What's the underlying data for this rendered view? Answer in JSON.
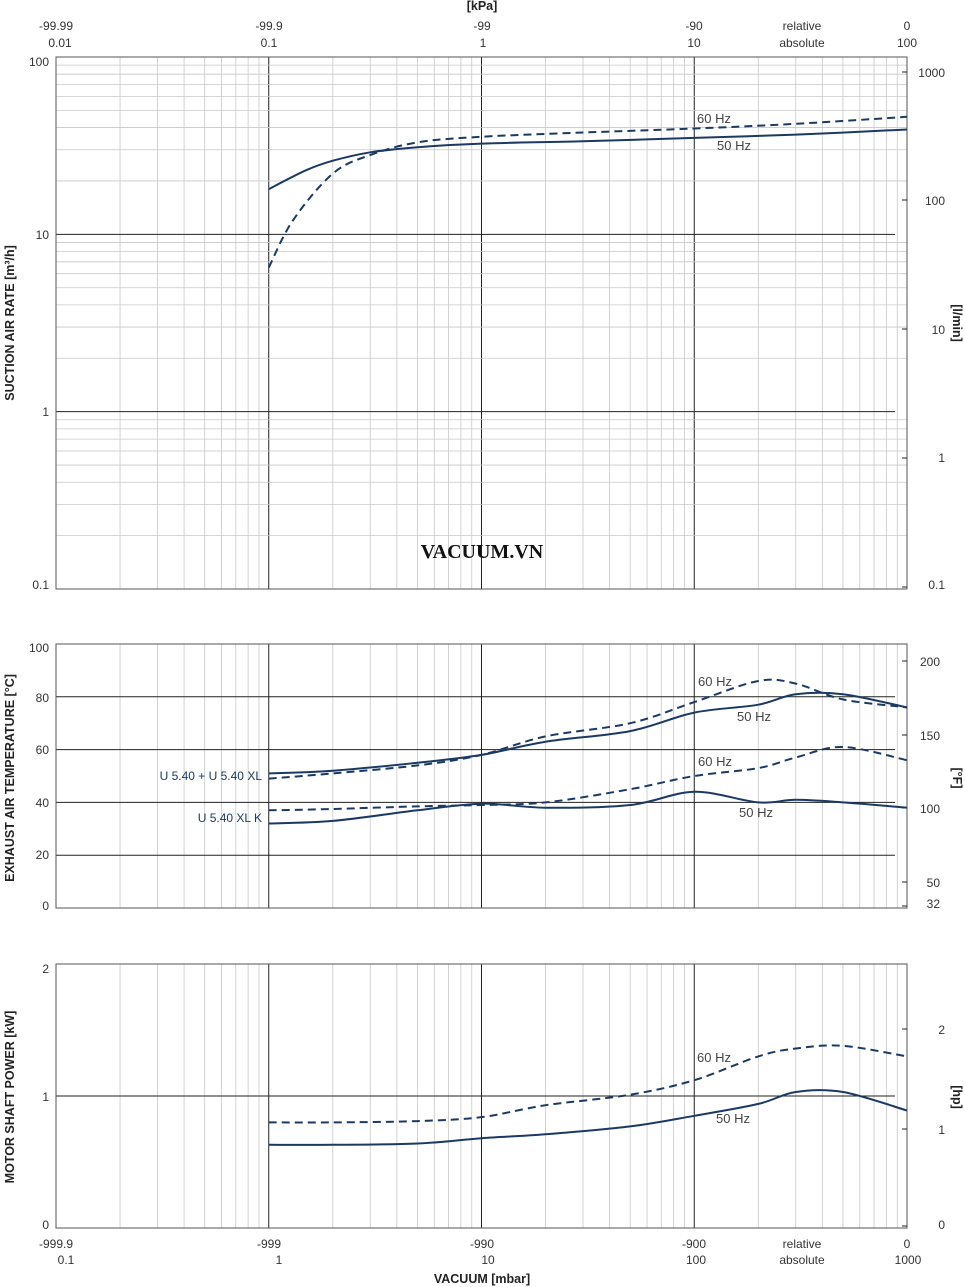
{
  "watermark": "VACUUM.VN",
  "top_axis": {
    "unit_label": "[kPa]",
    "relative_ticks": [
      "-99.99",
      "-99.9",
      "-99",
      "-90",
      "relative",
      "0"
    ],
    "absolute_ticks": [
      "0.01",
      "0.1",
      "1",
      "10",
      "absolute",
      "100"
    ]
  },
  "bottom_axis": {
    "unit_label": "VACUUM  [mbar]",
    "relative_ticks": [
      "-999.9",
      "-999",
      "-990",
      "-900",
      "relative",
      "0"
    ],
    "absolute_ticks": [
      "0.1",
      "1",
      "10",
      "100",
      "absolute",
      "1000"
    ]
  },
  "chart_data": [
    {
      "type": "line",
      "x_scale": "log",
      "xlim": [
        0.1,
        1000
      ],
      "y_scale": "log",
      "ylim": [
        0.1,
        100
      ],
      "ylabel": "SUCTION AIR RATE  [m³/h]",
      "y_ticks": [
        "100",
        "10",
        "1",
        "0.1"
      ],
      "y2label": "[l/min]",
      "y2_ticks": [
        "1000",
        "100",
        "10",
        "1",
        "0.1"
      ],
      "series": [
        {
          "name": "50 Hz",
          "x": [
            1,
            1.5,
            2,
            3,
            5,
            10,
            30,
            100,
            300,
            1000
          ],
          "y": [
            18,
            23,
            26,
            29,
            31,
            32.5,
            33.5,
            35,
            36.5,
            39
          ]
        },
        {
          "name": "60 Hz",
          "x": [
            1,
            1.3,
            2,
            3,
            5,
            10,
            30,
            100,
            300,
            1000
          ],
          "y": [
            6.5,
            12,
            22,
            28,
            33,
            35.5,
            37.5,
            39.5,
            42,
            46
          ]
        }
      ],
      "labels": [
        "60 Hz",
        "50 Hz"
      ]
    },
    {
      "type": "line",
      "x_scale": "log",
      "xlim": [
        0.1,
        1000
      ],
      "ylim": [
        0,
        100
      ],
      "ylabel": "EXHAUST AIR TEMPERATURE  [°C]",
      "y_ticks": [
        "100",
        "80",
        "60",
        "40",
        "20",
        "0"
      ],
      "y2label": "[°F]",
      "y2_ticks": [
        "200",
        "150",
        "100",
        "50",
        "32"
      ],
      "series": [
        {
          "name": "U 5.40 + U 5.40 XL",
          "variant": "50 Hz",
          "x": [
            1,
            2,
            5,
            10,
            20,
            50,
            100,
            200,
            300,
            500,
            1000
          ],
          "y": [
            51,
            52,
            55,
            58,
            63,
            67,
            74,
            77,
            81,
            81,
            76
          ]
        },
        {
          "name": "U 5.40 + U 5.40 XL",
          "variant": "60 Hz",
          "x": [
            1,
            2,
            5,
            10,
            20,
            50,
            100,
            200,
            300,
            500,
            1000
          ],
          "y": [
            49,
            51,
            54,
            58,
            65,
            70,
            78,
            86,
            85,
            79,
            76
          ]
        },
        {
          "name": "U 5.40 XL K",
          "variant": "50 Hz",
          "x": [
            1,
            2,
            5,
            10,
            20,
            50,
            100,
            200,
            300,
            500,
            1000
          ],
          "y": [
            32,
            33,
            37,
            39.5,
            38,
            39,
            44,
            40,
            41,
            40,
            38
          ]
        },
        {
          "name": "U 5.40 XL K",
          "variant": "60 Hz",
          "x": [
            1,
            2,
            5,
            10,
            20,
            50,
            100,
            200,
            300,
            500,
            1000
          ],
          "y": [
            37,
            37.5,
            38.5,
            39,
            40,
            45,
            50,
            53,
            57,
            61,
            56
          ]
        }
      ],
      "labels": [
        "60 Hz",
        "50 Hz",
        "60 Hz",
        "50 Hz"
      ],
      "series_labels": [
        "U 5.40 + U 5.40 XL",
        "U 5.40 XL K"
      ]
    },
    {
      "type": "line",
      "x_scale": "log",
      "xlim": [
        0.1,
        1000
      ],
      "ylim": [
        0,
        2
      ],
      "ylabel": "MOTOR SHAFT POWER  [kW]",
      "y_ticks": [
        "2",
        "1",
        "0"
      ],
      "y2label": "[hp]",
      "y2_ticks": [
        "2",
        "1",
        "0"
      ],
      "series": [
        {
          "name": "50 Hz",
          "x": [
            1,
            2,
            5,
            10,
            20,
            50,
            100,
            200,
            300,
            500,
            1000
          ],
          "y": [
            0.63,
            0.63,
            0.64,
            0.68,
            0.71,
            0.77,
            0.85,
            0.94,
            1.03,
            1.03,
            0.89
          ]
        },
        {
          "name": "60 Hz",
          "x": [
            1,
            2,
            5,
            10,
            20,
            50,
            100,
            200,
            300,
            500,
            1000
          ],
          "y": [
            0.8,
            0.8,
            0.81,
            0.84,
            0.93,
            1.01,
            1.12,
            1.3,
            1.36,
            1.38,
            1.3
          ]
        }
      ],
      "labels": [
        "60 Hz",
        "50 Hz"
      ]
    }
  ]
}
